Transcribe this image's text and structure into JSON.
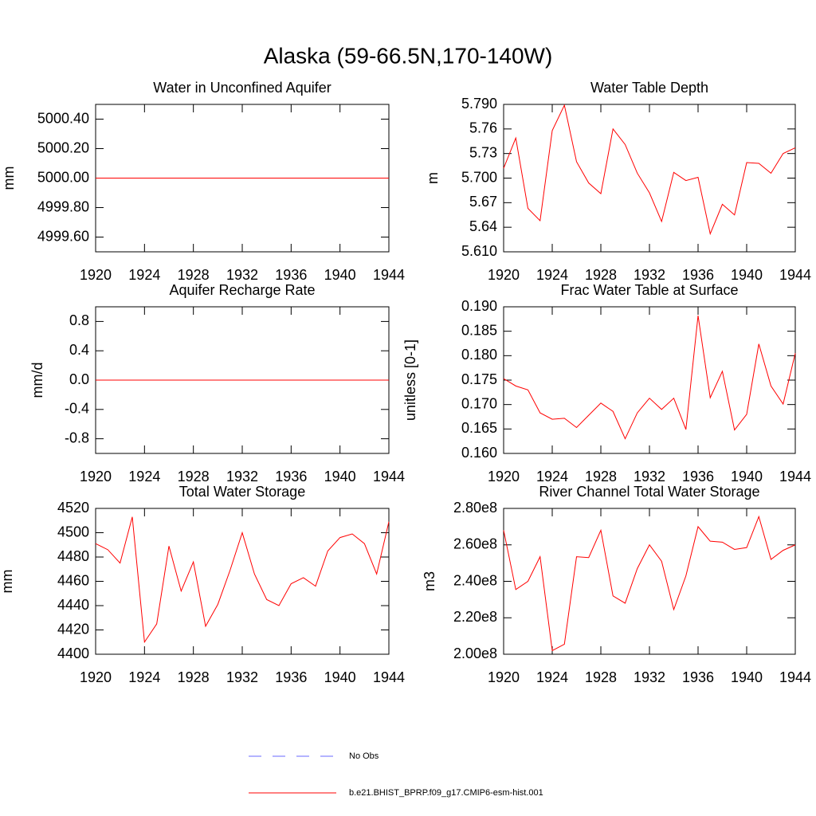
{
  "title": "Alaska (59-66.5N,170-140W)",
  "legend": [
    {
      "name": "No Obs",
      "color": "#6a6aff",
      "dash": true
    },
    {
      "name": "b.e21.BHIST_BPRP.f09_g17.CMIP6-esm-hist.001",
      "color": "#ff0000",
      "dash": false
    }
  ],
  "chart_data": [
    {
      "type": "line",
      "title": "Water in Unconfined Aquifer",
      "y_label": "mm",
      "color": "#ff0000",
      "x": [
        1920,
        1921,
        1922,
        1923,
        1924,
        1925,
        1926,
        1927,
        1928,
        1929,
        1930,
        1931,
        1932,
        1933,
        1934,
        1935,
        1936,
        1937,
        1938,
        1939,
        1940,
        1941,
        1942,
        1943,
        1944
      ],
      "values": [
        5000,
        5000,
        5000,
        5000,
        5000,
        5000,
        5000,
        5000,
        5000,
        5000,
        5000,
        5000,
        5000,
        5000,
        5000,
        5000,
        5000,
        5000,
        5000,
        5000,
        5000,
        5000,
        5000,
        5000,
        5000
      ],
      "xlim": [
        1920,
        1944
      ],
      "xticks": [
        1920,
        1924,
        1928,
        1932,
        1936,
        1940,
        1944
      ],
      "ylim": [
        4999.5,
        5000.5
      ],
      "yticks": [
        {
          "value": 4999.6,
          "label": "4999.60"
        },
        {
          "value": 4999.8,
          "label": "4999.80"
        },
        {
          "value": 5000,
          "label": "5000.00"
        },
        {
          "value": 5000.2,
          "label": "5000.20"
        },
        {
          "value": 5000.4,
          "label": "5000.40"
        }
      ]
    },
    {
      "type": "line",
      "title": "Water Table Depth",
      "y_label": "m",
      "color": "#ff0000",
      "x": [
        1920,
        1921,
        1922,
        1923,
        1924,
        1925,
        1926,
        1927,
        1928,
        1929,
        1930,
        1931,
        1932,
        1933,
        1934,
        1935,
        1936,
        1937,
        1938,
        1939,
        1940,
        1941,
        1942,
        1943,
        1944
      ],
      "values": [
        5.712,
        5.749,
        5.663,
        5.648,
        5.758,
        5.789,
        5.72,
        5.694,
        5.681,
        5.76,
        5.741,
        5.706,
        5.682,
        5.647,
        5.707,
        5.697,
        5.701,
        5.632,
        5.668,
        5.655,
        5.719,
        5.718,
        5.706,
        5.73,
        5.737
      ],
      "xlim": [
        1920,
        1944
      ],
      "xticks": [
        1920,
        1924,
        1928,
        1932,
        1936,
        1940,
        1944
      ],
      "ylim": [
        5.61,
        5.79
      ],
      "yticks": [
        {
          "value": 5.61,
          "label": "5.610"
        },
        5.64,
        5.67,
        {
          "value": 5.7,
          "label": "5.700"
        },
        5.73,
        5.76,
        {
          "value": 5.79,
          "label": "5.790"
        }
      ]
    },
    {
      "type": "line",
      "title": "Aquifer Recharge Rate",
      "y_label": "mm/d",
      "color": "#ff0000",
      "x": [
        1920,
        1921,
        1922,
        1923,
        1924,
        1925,
        1926,
        1927,
        1928,
        1929,
        1930,
        1931,
        1932,
        1933,
        1934,
        1935,
        1936,
        1937,
        1938,
        1939,
        1940,
        1941,
        1942,
        1943,
        1944
      ],
      "values": [
        0,
        0,
        0,
        0,
        0,
        0,
        0,
        0,
        0,
        0,
        0,
        0,
        0,
        0,
        0,
        0,
        0,
        0,
        0,
        0,
        0,
        0,
        0,
        0,
        0
      ],
      "xlim": [
        1920,
        1944
      ],
      "xticks": [
        1920,
        1924,
        1928,
        1932,
        1936,
        1940,
        1944
      ],
      "ylim": [
        -1,
        1
      ],
      "yticks": [
        -0.8,
        -0.4,
        {
          "value": 0,
          "label": "0.0"
        },
        0.4,
        0.8
      ]
    },
    {
      "type": "line",
      "title": "Frac Water Table at Surface",
      "y_label": "unitless [0-1]",
      "color": "#ff0000",
      "x": [
        1920,
        1921,
        1922,
        1923,
        1924,
        1925,
        1926,
        1927,
        1928,
        1929,
        1930,
        1931,
        1932,
        1933,
        1934,
        1935,
        1936,
        1937,
        1938,
        1939,
        1940,
        1941,
        1942,
        1943,
        1944
      ],
      "values": [
        0.1753,
        0.1738,
        0.173,
        0.1683,
        0.167,
        0.1672,
        0.1653,
        0.1678,
        0.1703,
        0.1686,
        0.163,
        0.1683,
        0.1713,
        0.169,
        0.1713,
        0.1649,
        0.1882,
        0.1714,
        0.1768,
        0.1648,
        0.168,
        0.1824,
        0.1738,
        0.1701,
        0.1805
      ],
      "xlim": [
        1920,
        1944
      ],
      "xticks": [
        1920,
        1924,
        1928,
        1932,
        1936,
        1940,
        1944
      ],
      "ylim": [
        0.16,
        0.19
      ],
      "yticks": [
        {
          "value": 0.16,
          "label": "0.160"
        },
        0.165,
        {
          "value": 0.17,
          "label": "0.170"
        },
        0.175,
        {
          "value": 0.18,
          "label": "0.180"
        },
        0.185,
        {
          "value": 0.19,
          "label": "0.190"
        }
      ]
    },
    {
      "type": "line",
      "title": "Total Water Storage",
      "y_label": "mm",
      "color": "#ff0000",
      "x": [
        1920,
        1921,
        1922,
        1923,
        1924,
        1925,
        1926,
        1927,
        1928,
        1929,
        1930,
        1931,
        1932,
        1933,
        1934,
        1935,
        1936,
        1937,
        1938,
        1939,
        1940,
        1941,
        1942,
        1943,
        1944
      ],
      "values": [
        4491,
        4486,
        4475,
        4513,
        4410,
        4425,
        4489,
        4452,
        4476,
        4423,
        4441,
        4469,
        4500,
        4466,
        4445,
        4440,
        4458,
        4463,
        4456,
        4485,
        4496,
        4499,
        4491,
        4466,
        4509
      ],
      "xlim": [
        1920,
        1944
      ],
      "xticks": [
        1920,
        1924,
        1928,
        1932,
        1936,
        1940,
        1944
      ],
      "ylim": [
        4400,
        4520
      ],
      "yticks": [
        4400,
        4420,
        4440,
        4460,
        4480,
        4500,
        4520
      ]
    },
    {
      "type": "line",
      "title": "River Channel Total Water Storage",
      "y_label": "m3",
      "color": "#ff0000",
      "x": [
        1920,
        1921,
        1922,
        1923,
        1924,
        1925,
        1926,
        1927,
        1928,
        1929,
        1930,
        1931,
        1932,
        1933,
        1934,
        1935,
        1936,
        1937,
        1938,
        1939,
        1940,
        1941,
        1942,
        1943,
        1944
      ],
      "values": [
        268000000,
        235500000,
        240000000,
        253500000,
        202000000,
        205500000,
        253500000,
        253000000,
        268000000,
        232000000,
        228000000,
        247000000,
        260000000,
        251000000,
        224500000,
        243000000,
        270000000,
        262000000,
        261500000,
        257500000,
        258500000,
        275500000,
        252000000,
        257000000,
        260000000
      ],
      "xlim": [
        1920,
        1944
      ],
      "xticks": [
        1920,
        1924,
        1928,
        1932,
        1936,
        1940,
        1944
      ],
      "ylim": [
        200000000,
        280000000
      ],
      "yticks": [
        {
          "value": 200000000,
          "label": "2.00e8"
        },
        {
          "value": 220000000,
          "label": "2.20e8"
        },
        {
          "value": 240000000,
          "label": "2.40e8"
        },
        {
          "value": 260000000,
          "label": "2.60e8"
        },
        {
          "value": 280000000,
          "label": "2.80e8"
        }
      ]
    }
  ]
}
